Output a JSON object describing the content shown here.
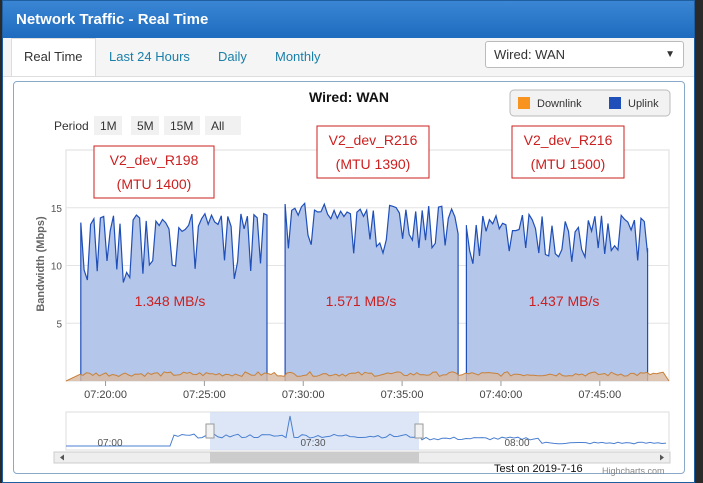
{
  "window": {
    "title": "Network Traffic - Real Time"
  },
  "tabs": [
    {
      "label": "Real Time",
      "active": true
    },
    {
      "label": "Last 24 Hours",
      "active": false
    },
    {
      "label": "Daily",
      "active": false
    },
    {
      "label": "Monthly",
      "active": false
    }
  ],
  "interface_select": {
    "value": "Wired: WAN"
  },
  "chart_data": {
    "type": "area",
    "title": "Wired: WAN",
    "ylabel": "Bandwidth (Mbps)",
    "xlabel": "",
    "ylim": [
      0,
      20
    ],
    "y_ticks": [
      5,
      10,
      15
    ],
    "x_ticks": [
      "07:20:00",
      "07:25:00",
      "07:30:00",
      "07:35:00",
      "07:40:00",
      "07:45:00"
    ],
    "grid": true,
    "legend": {
      "position": "top-right",
      "entries": [
        {
          "name": "Downlink",
          "color": "#f7931e"
        },
        {
          "name": "Uplink",
          "color": "#1f4fb8"
        }
      ]
    },
    "period": {
      "label": "Period",
      "options": [
        "1M",
        "5M",
        "15M",
        "All"
      ]
    },
    "series": [
      {
        "name": "Uplink",
        "color": "#1f4fb8",
        "fill": "#b4c6ea",
        "segments": [
          {
            "x_start": "07:18:45",
            "x_end": "07:28:10",
            "typical_high": 14.5,
            "typical_low": 9.5
          },
          {
            "x_start": "07:29:05",
            "x_end": "07:37:50",
            "typical_high": 15.5,
            "typical_low": 12
          },
          {
            "x_start": "07:38:15",
            "x_end": "07:47:25",
            "typical_high": 14.5,
            "typical_low": 11
          }
        ]
      },
      {
        "name": "Downlink",
        "color": "#f7931e",
        "fill": "#d8b9a0",
        "typical": 0.6
      }
    ],
    "annotations": [
      {
        "label": "V2_dev_R198",
        "sub": "(MTU 1400)",
        "rate": "1.348 MB/s"
      },
      {
        "label": "V2_dev_R216",
        "sub": "(MTU 1390)",
        "rate": "1.571 MB/s"
      },
      {
        "label": "V2_dev_R216",
        "sub": "(MTU 1500)",
        "rate": "1.437 MB/s"
      }
    ],
    "navigator": {
      "labels": [
        "07:00",
        "07:30",
        "08:00"
      ]
    }
  },
  "footer": {
    "note": "Test on 2019-7-16",
    "credit": "Highcharts.com"
  },
  "colors": {
    "accent": "#1e6bbf",
    "annotation": "#cc1f1f"
  }
}
